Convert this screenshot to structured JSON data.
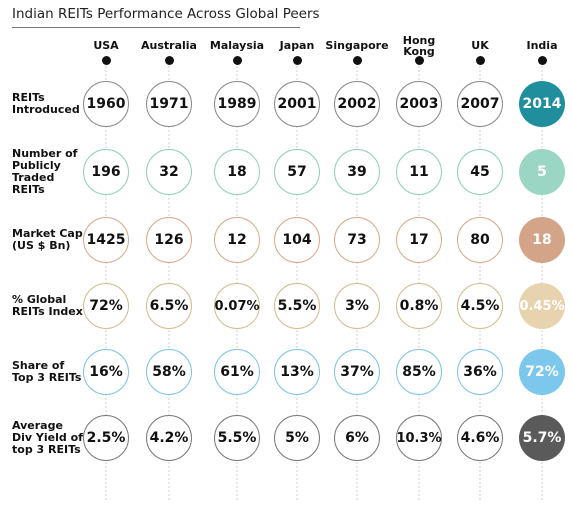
{
  "title": "Indian REITs Performance Across Global Peers",
  "chart_data": {
    "type": "table",
    "columns": [
      "USA",
      "Australia",
      "Malaysia",
      "Japan",
      "Singapore",
      "Hong Kong",
      "UK",
      "India"
    ],
    "rows": [
      {
        "label": "REITs Introduced",
        "values": [
          "1960",
          "1971",
          "1989",
          "2001",
          "2002",
          "2003",
          "2007",
          "2014"
        ],
        "border_color": "#8a8a8a",
        "india_fill": "#1f8f9e"
      },
      {
        "label": "Number of Publicly Traded REITs",
        "values": [
          "196",
          "32",
          "18",
          "57",
          "39",
          "11",
          "45",
          "5"
        ],
        "border_color": "#8fd0b8",
        "india_fill": "#9bd6c4"
      },
      {
        "label": "Market Cap (US $ Bn)",
        "values": [
          "1425",
          "126",
          "12",
          "104",
          "73",
          "17",
          "80",
          "18"
        ],
        "border_color": "#d9a98a",
        "india_fill": "#d4a489"
      },
      {
        "label": "% Global REITs Index",
        "values": [
          "72%",
          "6.5%",
          "0.07%",
          "5.5%",
          "3%",
          "0.8%",
          "4.5%",
          "0.45%"
        ],
        "border_color": "#d8b98e",
        "india_fill": "#e7d3ae"
      },
      {
        "label": "Share of Top 3 REITs",
        "values": [
          "16%",
          "58%",
          "61%",
          "13%",
          "37%",
          "85%",
          "36%",
          "72%"
        ],
        "border_color": "#7cc4e8",
        "india_fill": "#7cc7ec"
      },
      {
        "label": "Average Div Yield of top 3 REITs",
        "values": [
          "2.5%",
          "4.2%",
          "5.5%",
          "5%",
          "6%",
          "10.3%",
          "4.6%",
          "5.7%"
        ],
        "border_color": "#7a7a7a",
        "india_fill": "#5a5a5a"
      }
    ]
  }
}
